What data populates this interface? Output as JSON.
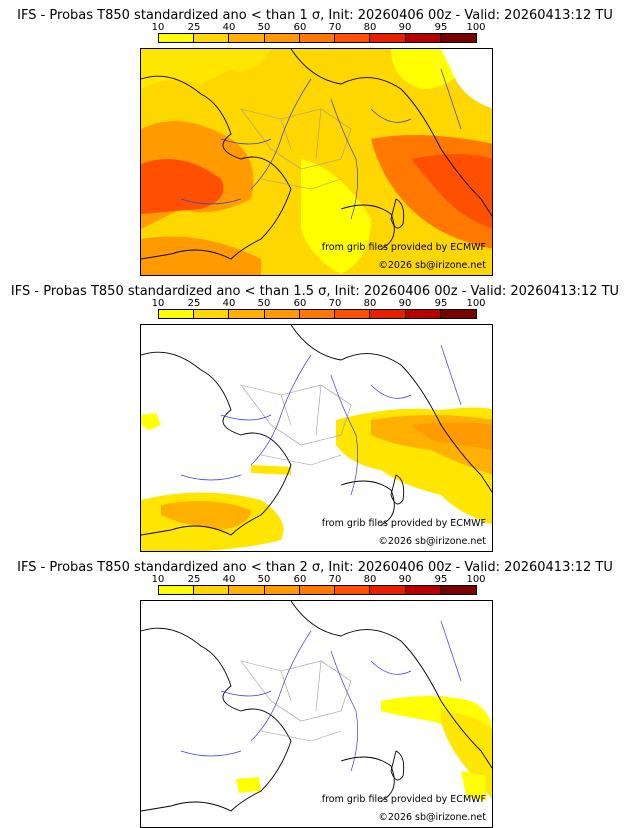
{
  "panels": [
    {
      "title": "IFS - Probas T850  standardized ano < than 1 σ, Init: 20260406 00z - Valid: 20260413:12 TU",
      "threshold_sigma": 1,
      "credit_source": "from grib files provided by ECMWF",
      "credit_copyright": "©2026 sb@irizone.net"
    },
    {
      "title": "IFS - Probas T850  standardized ano < than 1.5 σ, Init: 20260406 00z - Valid: 20260413:12 TU",
      "threshold_sigma": 1.5,
      "credit_source": "from grib files provided by ECMWF",
      "credit_copyright": "©2026 sb@irizone.net"
    },
    {
      "title": "IFS - Probas T850  standardized ano < than 2 σ, Init: 20260406 00z - Valid: 20260413:12 TU",
      "threshold_sigma": 2,
      "credit_source": "from grib files provided by ECMWF",
      "credit_copyright": "©2026 sb@irizone.net"
    }
  ],
  "colorbar": {
    "ticks": [
      "10",
      "25",
      "40",
      "50",
      "60",
      "70",
      "80",
      "90",
      "95",
      "100"
    ],
    "colors": [
      "#ffff00",
      "#ffd700",
      "#ffb000",
      "#ff9a00",
      "#ff7800",
      "#ff5000",
      "#e82000",
      "#b80000",
      "#7a0000"
    ]
  },
  "colors": {
    "border_line": "#000000",
    "river_line": "#3a3adf",
    "admin_line": "#9a9a9a"
  }
}
